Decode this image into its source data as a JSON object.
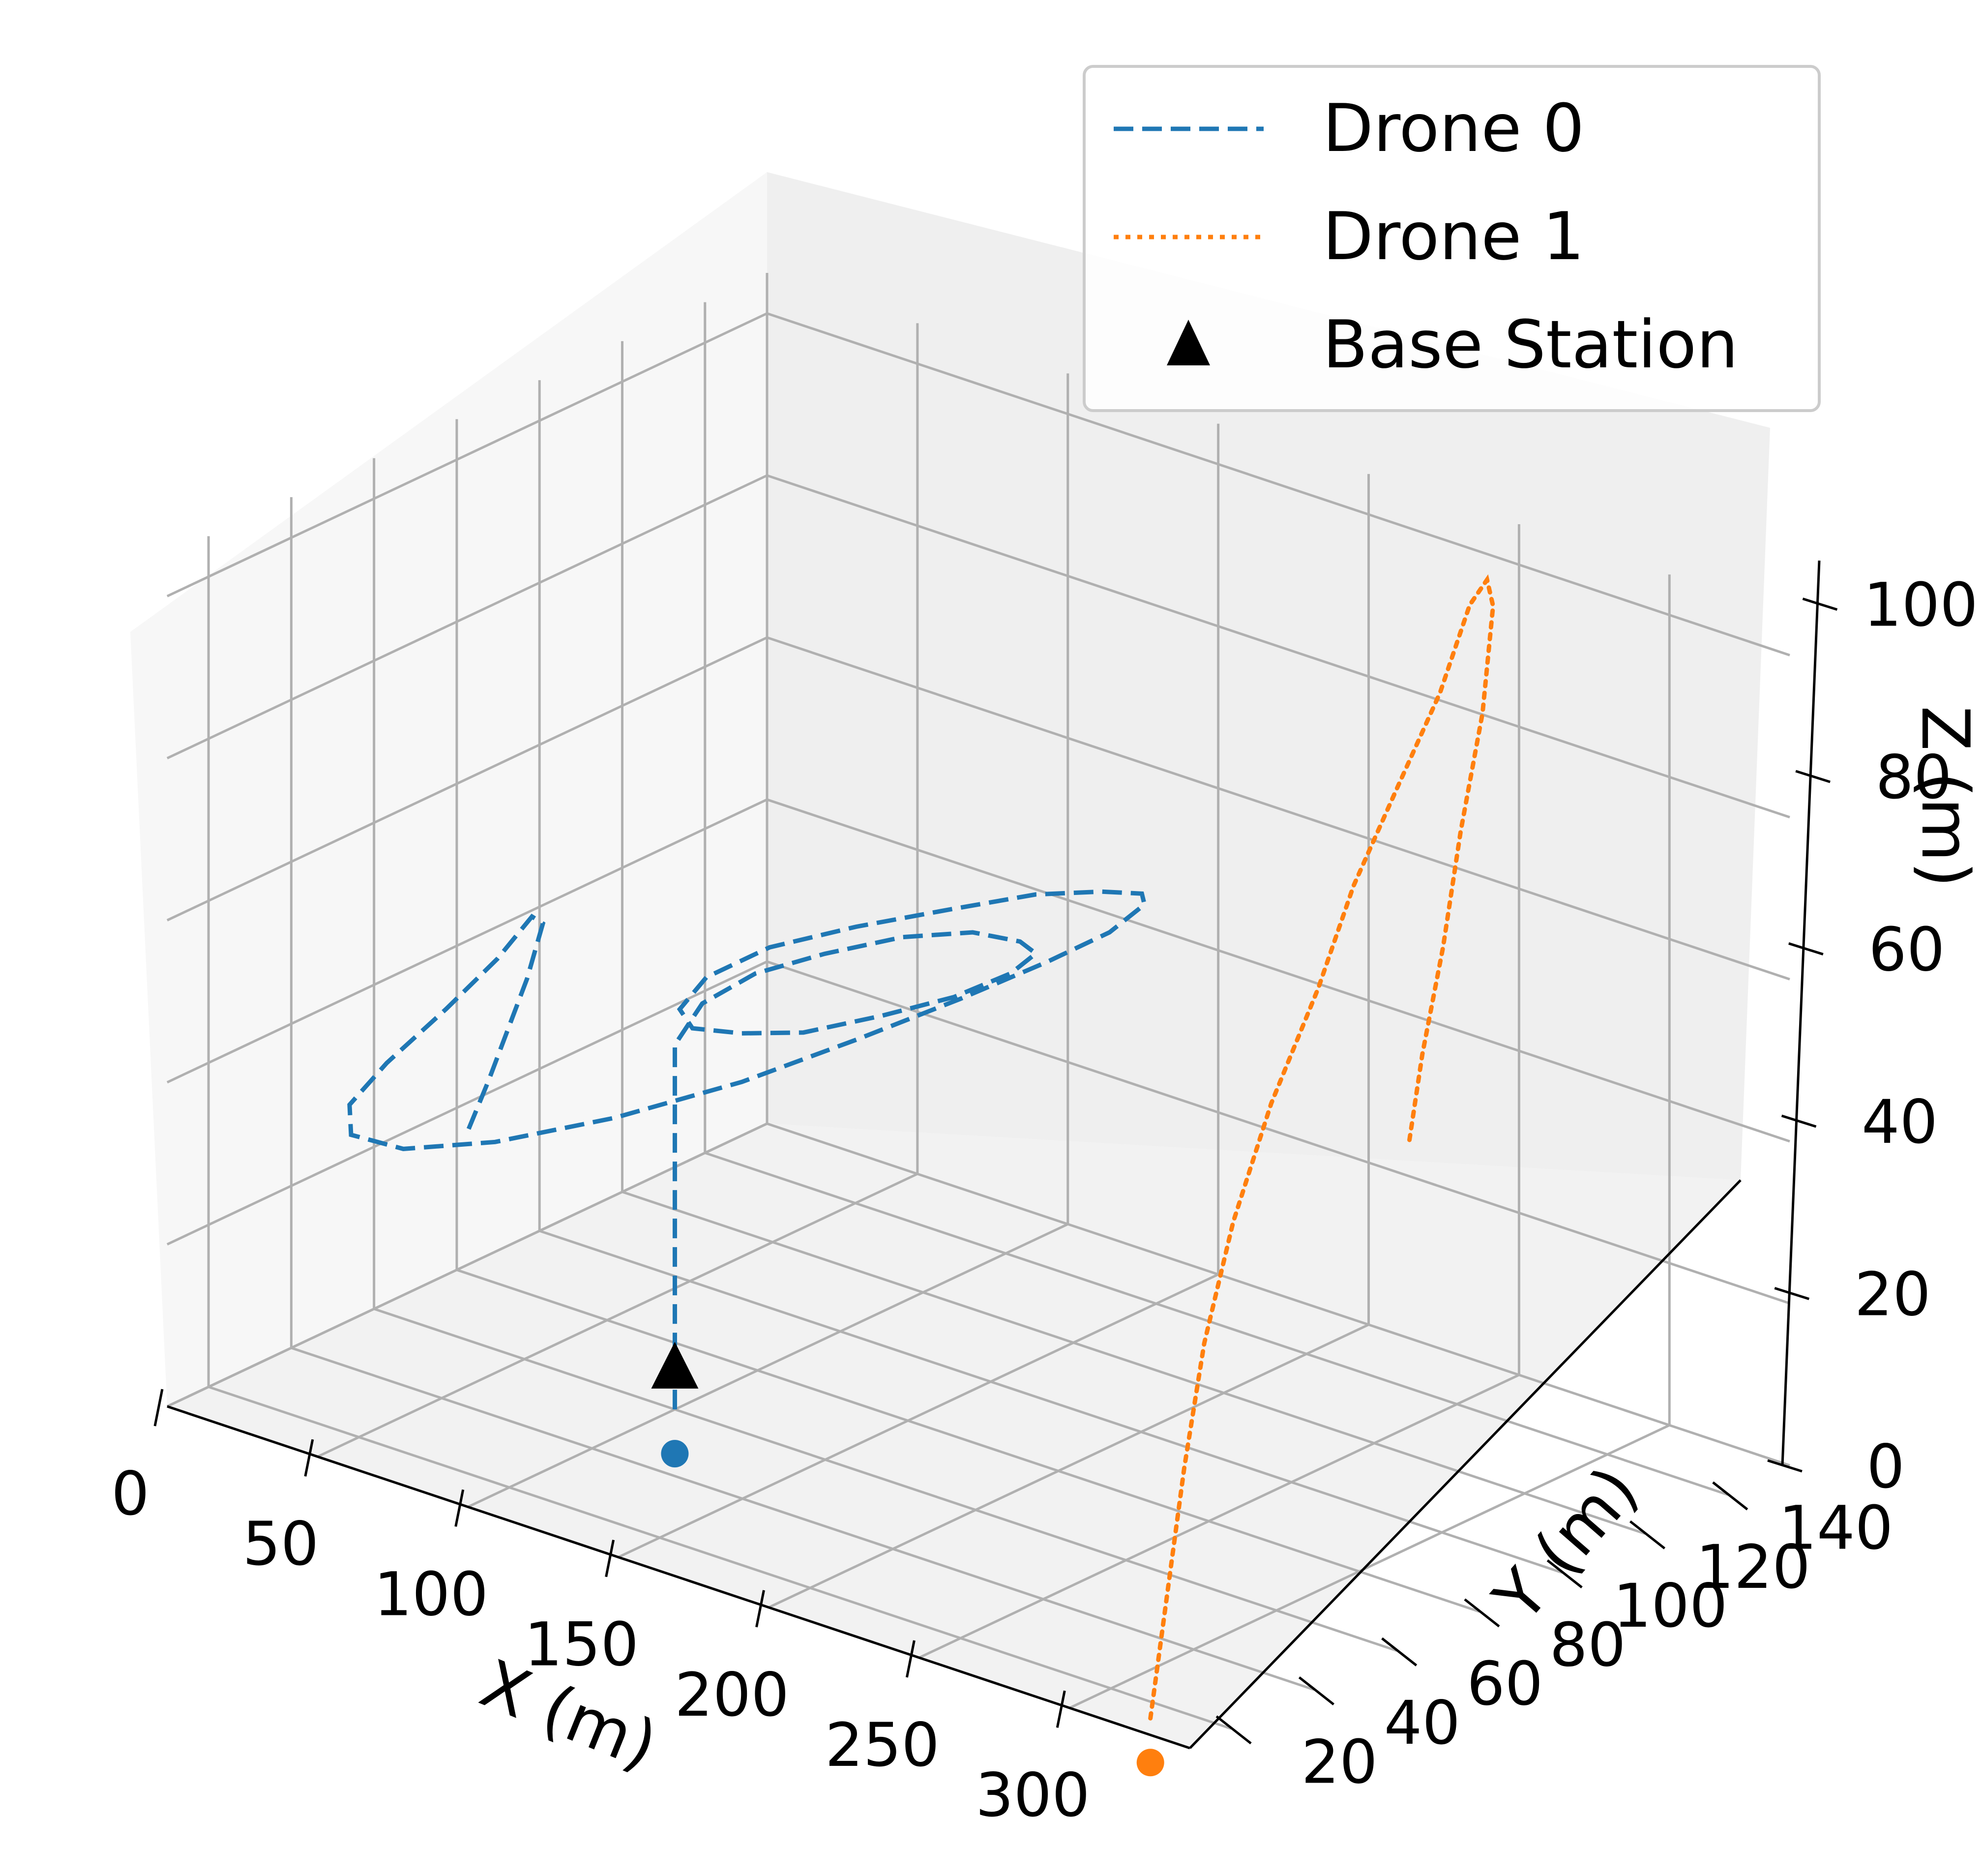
{
  "chart_data": {
    "type": "line3d",
    "title": "",
    "xlabel": "X (m)",
    "ylabel": "Y (m)",
    "zlabel": "Z (m)",
    "xlim": [
      0,
      340
    ],
    "ylim": [
      10,
      155
    ],
    "zlim": [
      0,
      105
    ],
    "xticks": [
      0,
      50,
      100,
      150,
      200,
      250,
      300
    ],
    "yticks": [
      20,
      40,
      60,
      80,
      100,
      120,
      140
    ],
    "zticks": [
      0,
      20,
      40,
      60,
      80,
      100
    ],
    "grid": true,
    "legend_position": "top-right",
    "series": [
      {
        "name": "Drone 0",
        "style": "dashed",
        "color": "#1f77b4",
        "start_point": [
          100,
          60,
          0
        ],
        "points": [
          [
            100,
            60,
            0
          ],
          [
            100,
            60,
            5
          ],
          [
            100,
            60,
            10
          ],
          [
            100,
            60,
            20
          ],
          [
            100,
            60,
            30
          ],
          [
            100,
            60,
            40
          ],
          [
            100,
            60,
            45
          ],
          [
            105,
            63,
            50
          ],
          [
            113,
            70,
            53
          ],
          [
            125,
            78,
            55
          ],
          [
            140,
            86,
            57
          ],
          [
            155,
            92,
            58
          ],
          [
            168,
            94,
            58
          ],
          [
            176,
            92,
            58
          ],
          [
            176,
            86,
            57
          ],
          [
            168,
            78,
            55
          ],
          [
            155,
            70,
            53
          ],
          [
            140,
            62,
            51
          ],
          [
            125,
            58,
            50
          ],
          [
            110,
            57,
            49
          ],
          [
            103,
            59,
            50
          ],
          [
            105,
            64,
            53
          ],
          [
            115,
            72,
            56
          ],
          [
            130,
            82,
            58
          ],
          [
            148,
            92,
            60
          ],
          [
            165,
            100,
            62
          ],
          [
            180,
            105,
            63
          ],
          [
            192,
            106,
            64
          ],
          [
            197,
            103,
            64
          ],
          [
            195,
            96,
            62
          ],
          [
            185,
            88,
            59
          ],
          [
            170,
            78,
            55
          ],
          [
            150,
            68,
            50
          ],
          [
            125,
            58,
            44
          ],
          [
            95,
            49,
            38
          ],
          [
            65,
            42,
            33
          ],
          [
            40,
            38,
            30
          ],
          [
            24,
            37,
            30
          ],
          [
            18,
            41,
            32
          ],
          [
            18,
            50,
            35
          ],
          [
            24,
            60,
            40
          ],
          [
            30,
            68,
            45
          ],
          [
            36,
            72,
            50
          ],
          [
            41,
            71,
            50
          ],
          [
            44,
            65,
            45
          ],
          [
            45,
            55,
            35
          ],
          [
            45,
            50,
            30
          ]
        ]
      },
      {
        "name": "Drone 1",
        "style": "dotted",
        "color": "#ff7f0e",
        "start_point": [
          320,
          15,
          0
        ],
        "points": [
          [
            320,
            15,
            0
          ],
          [
            305,
            30,
            10
          ],
          [
            290,
            45,
            20
          ],
          [
            276,
            60,
            30
          ],
          [
            265,
            75,
            40
          ],
          [
            257,
            90,
            50
          ],
          [
            252,
            105,
            60
          ],
          [
            250,
            115,
            70
          ],
          [
            251,
            125,
            80
          ],
          [
            254,
            133,
            90
          ],
          [
            257,
            138,
            100
          ],
          [
            260,
            140,
            103
          ],
          [
            262,
            140,
            100
          ],
          [
            264,
            136,
            88
          ],
          [
            265,
            130,
            75
          ],
          [
            266,
            125,
            62
          ],
          [
            266,
            120,
            50
          ],
          [
            267,
            116,
            40
          ]
        ]
      },
      {
        "name": "Base Station",
        "style": "marker",
        "marker": "triangle",
        "color": "#000000",
        "points": [
          [
            100,
            60,
            5
          ]
        ]
      }
    ]
  }
}
